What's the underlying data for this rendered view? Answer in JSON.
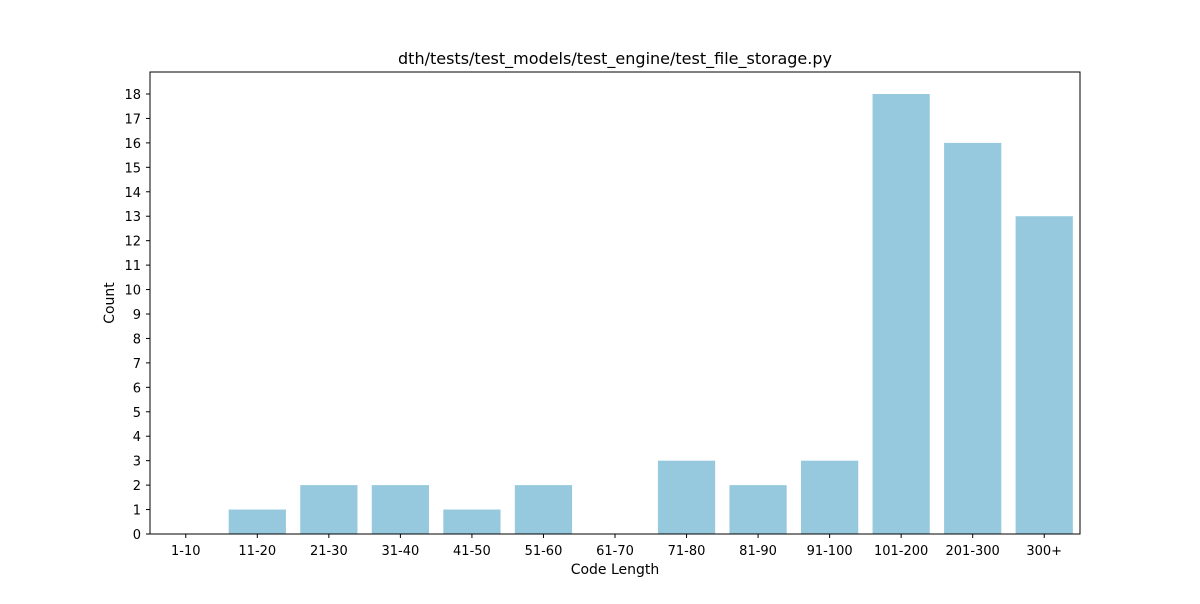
{
  "chart_data": {
    "type": "bar",
    "title": "dth/tests/test_models/test_engine/test_file_storage.py",
    "xlabel": "Code Length",
    "ylabel": "Count",
    "categories": [
      "1-10",
      "11-20",
      "21-30",
      "31-40",
      "41-50",
      "51-60",
      "61-70",
      "71-80",
      "81-90",
      "91-100",
      "101-200",
      "201-300",
      "300+"
    ],
    "values": [
      0,
      1,
      2,
      2,
      1,
      2,
      0,
      3,
      2,
      3,
      18,
      16,
      13
    ],
    "ylim": [
      0,
      18.9
    ],
    "yticks": [
      0,
      1,
      2,
      3,
      4,
      5,
      6,
      7,
      8,
      9,
      10,
      11,
      12,
      13,
      14,
      15,
      16,
      17,
      18
    ],
    "bar_color": "#96c9de",
    "grid": false,
    "legend": "none"
  }
}
